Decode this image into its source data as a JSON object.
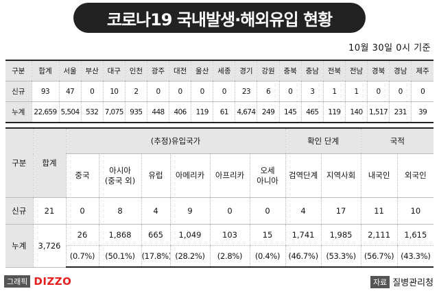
{
  "title": "코로나19 국내발생·해외유입 현황",
  "date_note": "10월 30일 0시 기준",
  "regional": {
    "row_header_label": "구분",
    "columns": [
      "합계",
      "서울",
      "부산",
      "대구",
      "인천",
      "광주",
      "대전",
      "울산",
      "세종",
      "경기",
      "강원",
      "충북",
      "충남",
      "전북",
      "전남",
      "경북",
      "경남",
      "제주"
    ],
    "rows": [
      {
        "label": "신규",
        "values": [
          "93",
          "47",
          "0",
          "10",
          "2",
          "0",
          "0",
          "0",
          "0",
          "23",
          "6",
          "0",
          "3",
          "1",
          "1",
          "0",
          "0",
          "0"
        ]
      },
      {
        "label": "누계",
        "values": [
          "22,659",
          "5,504",
          "532",
          "7,075",
          "935",
          "448",
          "406",
          "119",
          "61",
          "4,674",
          "249",
          "145",
          "465",
          "119",
          "140",
          "1,517",
          "231",
          "39"
        ]
      }
    ]
  },
  "overseas": {
    "row_header_label": "구분",
    "total_label": "합계",
    "group_estimated": "(추정)유입국가",
    "group_confirm": "확인 단계",
    "group_nationality": "국적",
    "sub_columns": [
      [
        "중국"
      ],
      [
        "아시아",
        "(중국 외)"
      ],
      [
        "유럽"
      ],
      [
        "아메리카"
      ],
      [
        "아프리카"
      ],
      [
        "오세",
        "아니아"
      ],
      [
        "검역단계"
      ],
      [
        "지역사회"
      ],
      [
        "내국인"
      ],
      [
        "외국인"
      ]
    ],
    "new": {
      "label": "신규",
      "total": "21",
      "values": [
        "0",
        "8",
        "4",
        "9",
        "0",
        "0",
        "4",
        "17",
        "11",
        "10"
      ]
    },
    "cumulative": {
      "label": "누계",
      "total": "3,726",
      "values": [
        "26",
        "1,868",
        "665",
        "1,049",
        "103",
        "15",
        "1,741",
        "1,985",
        "2,111",
        "1,615"
      ],
      "percents": [
        "(0.7%)",
        "(50.1%)",
        "(17.8%)",
        "(28.2%)",
        "(2.8%)",
        "(0.4%)",
        "(46.7%)",
        "(53.3%)",
        "(56.7%)",
        "(43.3%)"
      ]
    }
  },
  "footer": {
    "graphic_label": "그래픽",
    "brand": "DIZZO",
    "source_label": "자료",
    "source_name": "질병관리청"
  }
}
